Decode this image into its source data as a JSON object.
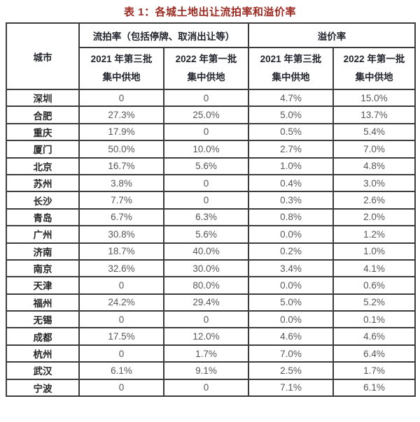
{
  "title": "表 1：各城土地出让流拍率和溢价率",
  "colors": {
    "title_text": "#9c2a21",
    "header_text": "#23262e",
    "city_text": "#262626",
    "value_text": "#575757",
    "border": "#3c3c3c",
    "background": "#ffffff"
  },
  "table": {
    "city_header": "城市",
    "group_headers": [
      {
        "label": "流拍率（包括停牌、取消出让等）"
      },
      {
        "label": "溢价率"
      }
    ],
    "sub_headers": [
      {
        "line1": "2021 年第三批",
        "line2": "集中供地"
      },
      {
        "line1": "2022 年第一批",
        "line2": "集中供地"
      },
      {
        "line1": "2021 年第三批",
        "line2": "集中供地"
      },
      {
        "line1": "2022 年第一批",
        "line2": "集中供地"
      }
    ],
    "rows": [
      {
        "city": "深圳",
        "values": [
          "0",
          "0",
          "4.7%",
          "15.0%"
        ]
      },
      {
        "city": "合肥",
        "values": [
          "27.3%",
          "25.0%",
          "5.0%",
          "13.7%"
        ]
      },
      {
        "city": "重庆",
        "values": [
          "17.9%",
          "0",
          "0.5%",
          "5.4%"
        ]
      },
      {
        "city": "厦门",
        "values": [
          "50.0%",
          "10.0%",
          "2.7%",
          "7.0%"
        ]
      },
      {
        "city": "北京",
        "values": [
          "16.7%",
          "5.6%",
          "1.0%",
          "4.8%"
        ]
      },
      {
        "city": "苏州",
        "values": [
          "3.8%",
          "0",
          "0.4%",
          "3.0%"
        ]
      },
      {
        "city": "长沙",
        "values": [
          "7.7%",
          "0",
          "0.3%",
          "2.6%"
        ]
      },
      {
        "city": "青岛",
        "values": [
          "6.7%",
          "6.3%",
          "0.8%",
          "2.0%"
        ]
      },
      {
        "city": "广州",
        "values": [
          "30.8%",
          "5.6%",
          "0.0%",
          "1.2%"
        ]
      },
      {
        "city": "济南",
        "values": [
          "18.7%",
          "40.0%",
          "0.2%",
          "1.0%"
        ]
      },
      {
        "city": "南京",
        "values": [
          "32.6%",
          "30.0%",
          "3.4%",
          "4.1%"
        ]
      },
      {
        "city": "天津",
        "values": [
          "0",
          "80.0%",
          "0.0%",
          "0.6%"
        ]
      },
      {
        "city": "福州",
        "values": [
          "24.2%",
          "29.4%",
          "5.0%",
          "5.2%"
        ]
      },
      {
        "city": "无锡",
        "values": [
          "0",
          "0",
          "0.0%",
          "0.1%"
        ]
      },
      {
        "city": "成都",
        "values": [
          "17.5%",
          "12.0%",
          "4.6%",
          "4.6%"
        ]
      },
      {
        "city": "杭州",
        "values": [
          "0",
          "1.7%",
          "7.0%",
          "6.4%"
        ]
      },
      {
        "city": "武汉",
        "values": [
          "6.1%",
          "9.1%",
          "2.5%",
          "1.7%"
        ]
      },
      {
        "city": "宁波",
        "values": [
          "0",
          "0",
          "7.1%",
          "6.1%"
        ]
      }
    ]
  }
}
